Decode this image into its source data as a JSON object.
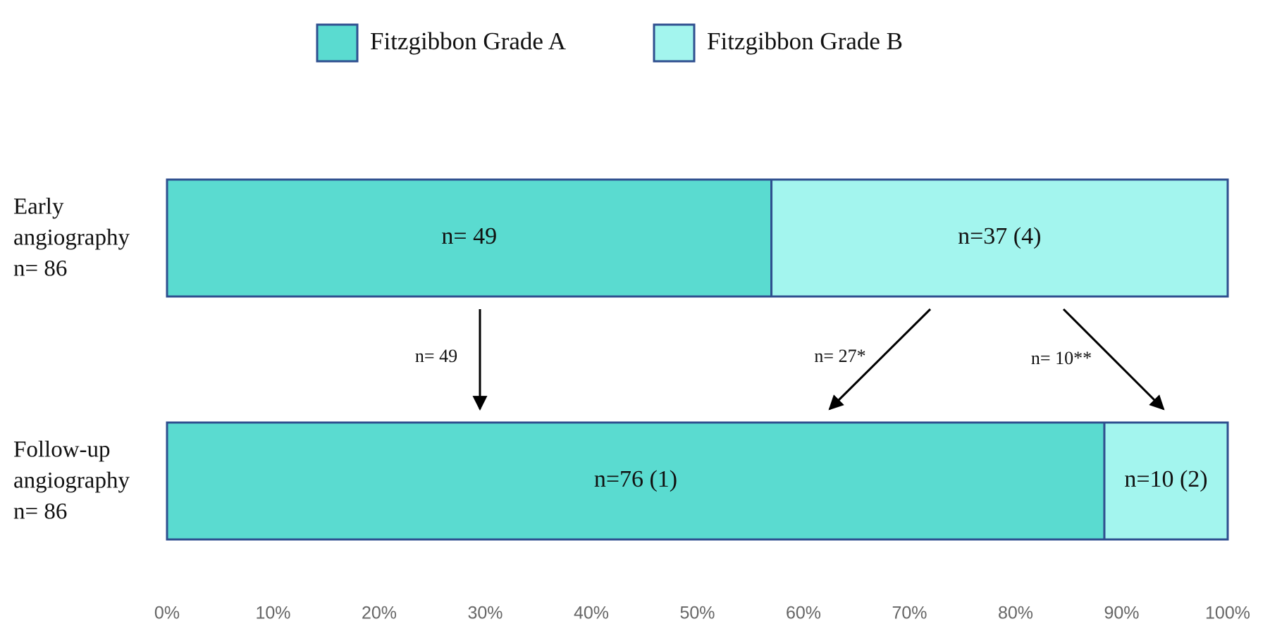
{
  "chart_data": {
    "type": "stacked_bar_h",
    "xlim": [
      0,
      100
    ],
    "xticks": [
      {
        "value": 0,
        "label": "0%"
      },
      {
        "value": 10,
        "label": "10%"
      },
      {
        "value": 20,
        "label": "20%"
      },
      {
        "value": 30,
        "label": "30%"
      },
      {
        "value": 40,
        "label": "40%"
      },
      {
        "value": 50,
        "label": "50%"
      },
      {
        "value": 60,
        "label": "60%"
      },
      {
        "value": 70,
        "label": "70%"
      },
      {
        "value": 80,
        "label": "80%"
      },
      {
        "value": 90,
        "label": "90%"
      },
      {
        "value": 100,
        "label": "100%"
      }
    ],
    "categories": [
      [
        "Early",
        "angiography",
        "n= 86"
      ],
      [
        "Follow-up",
        "angiography",
        "n= 86"
      ]
    ],
    "series": [
      {
        "name": "Fitzgibbon Grade A",
        "color": "#5adbd0",
        "values": [
          56.98,
          88.37
        ],
        "segment_labels": [
          "n= 49",
          "n=76 (1)"
        ]
      },
      {
        "name": "Fitzgibbon Grade B",
        "color": "#a3f5ee",
        "values": [
          43.02,
          11.63
        ],
        "segment_labels": [
          "n=37 (4)",
          "n=10 (2)"
        ]
      }
    ],
    "annotations": [
      "n= 49",
      "n= 27*",
      "n= 10**"
    ],
    "legend": "top"
  }
}
